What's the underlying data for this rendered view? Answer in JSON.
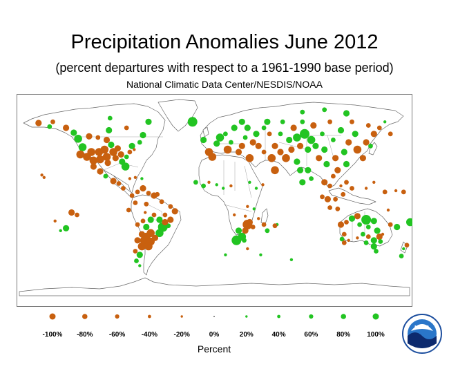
{
  "header": {
    "title": "Precipitation Anomalies June 2012",
    "subtitle": "(percent departures with respect to a 1961-1990 base period)",
    "source": "National Climatic Data Center/NESDIS/NOAA"
  },
  "legend": {
    "title": "Percent",
    "items": [
      {
        "label": "-100%",
        "value": -100
      },
      {
        "label": "-80%",
        "value": -80
      },
      {
        "label": "-60%",
        "value": -60
      },
      {
        "label": "-40%",
        "value": -40
      },
      {
        "label": "-20%",
        "value": -20
      },
      {
        "label": "0%",
        "value": 0
      },
      {
        "label": "20%",
        "value": 20
      },
      {
        "label": "40%",
        "value": 40
      },
      {
        "label": "60%",
        "value": 60
      },
      {
        "label": "80%",
        "value": 80
      },
      {
        "label": "100%",
        "value": 100
      }
    ]
  },
  "colors": {
    "dry": "#c8600f",
    "wet": "#22c422",
    "coast": "#666666",
    "border": "#888888",
    "frame": "#777777"
  },
  "logo": {
    "text": "NOAA",
    "icon": "noaa-logo-icon"
  },
  "stations": [
    {
      "lon": -160,
      "lat": 64,
      "v": -60
    },
    {
      "lon": -150,
      "lat": 61,
      "v": 40
    },
    {
      "lon": -147,
      "lat": 65,
      "v": -40
    },
    {
      "lon": -135,
      "lat": 60,
      "v": -60
    },
    {
      "lon": -128,
      "lat": 56,
      "v": 60
    },
    {
      "lon": -124,
      "lat": 51,
      "v": 80
    },
    {
      "lon": -114,
      "lat": 53,
      "v": -60
    },
    {
      "lon": -106,
      "lat": 52,
      "v": -40
    },
    {
      "lon": -98,
      "lat": 50,
      "v": -60
    },
    {
      "lon": -96,
      "lat": 58,
      "v": 60
    },
    {
      "lon": -95,
      "lat": 68,
      "v": 40
    },
    {
      "lon": -80,
      "lat": 60,
      "v": -40
    },
    {
      "lon": -75,
      "lat": 45,
      "v": 60
    },
    {
      "lon": -68,
      "lat": 48,
      "v": 40
    },
    {
      "lon": -65,
      "lat": 54,
      "v": 60
    },
    {
      "lon": -60,
      "lat": 65,
      "v": 60
    },
    {
      "lon": -120,
      "lat": 44,
      "v": 80
    },
    {
      "lon": -122,
      "lat": 38,
      "v": -80
    },
    {
      "lon": -116,
      "lat": 36,
      "v": -80
    },
    {
      "lon": -112,
      "lat": 40,
      "v": -80
    },
    {
      "lon": -110,
      "lat": 33,
      "v": -80
    },
    {
      "lon": -105,
      "lat": 40,
      "v": -80
    },
    {
      "lon": -104,
      "lat": 34,
      "v": -80
    },
    {
      "lon": -100,
      "lat": 42,
      "v": -80
    },
    {
      "lon": -98,
      "lat": 36,
      "v": -80
    },
    {
      "lon": -97,
      "lat": 31,
      "v": -60
    },
    {
      "lon": -94,
      "lat": 46,
      "v": 60
    },
    {
      "lon": -92,
      "lat": 40,
      "v": -80
    },
    {
      "lon": -90,
      "lat": 35,
      "v": -60
    },
    {
      "lon": -88,
      "lat": 43,
      "v": -60
    },
    {
      "lon": -85,
      "lat": 38,
      "v": -60
    },
    {
      "lon": -84,
      "lat": 32,
      "v": 60
    },
    {
      "lon": -81,
      "lat": 28,
      "v": 80
    },
    {
      "lon": -80,
      "lat": 36,
      "v": 40
    },
    {
      "lon": -77,
      "lat": 40,
      "v": -40
    },
    {
      "lon": -73,
      "lat": 42,
      "v": -20
    },
    {
      "lon": -110,
      "lat": 28,
      "v": -60
    },
    {
      "lon": -104,
      "lat": 24,
      "v": -60
    },
    {
      "lon": -99,
      "lat": 20,
      "v": 40
    },
    {
      "lon": -92,
      "lat": 16,
      "v": -60
    },
    {
      "lon": -87,
      "lat": 14,
      "v": -40
    },
    {
      "lon": -83,
      "lat": 10,
      "v": -40
    },
    {
      "lon": -77,
      "lat": 18,
      "v": -20
    },
    {
      "lon": -72,
      "lat": 19,
      "v": -20
    },
    {
      "lon": -66,
      "lat": 18,
      "v": 20
    },
    {
      "lon": -157,
      "lat": 21,
      "v": -20
    },
    {
      "lon": -155,
      "lat": 19,
      "v": -20
    },
    {
      "lon": -145,
      "lat": -17,
      "v": -20
    },
    {
      "lon": -130,
      "lat": -10,
      "v": -60
    },
    {
      "lon": -125,
      "lat": -12,
      "v": -40
    },
    {
      "lon": -135,
      "lat": -23,
      "v": 60
    },
    {
      "lon": -140,
      "lat": -25,
      "v": 20
    },
    {
      "lon": -75,
      "lat": 4,
      "v": -40
    },
    {
      "lon": -70,
      "lat": 7,
      "v": -40
    },
    {
      "lon": -65,
      "lat": 10,
      "v": -60
    },
    {
      "lon": -60,
      "lat": 6,
      "v": -40
    },
    {
      "lon": -55,
      "lat": 4,
      "v": -60
    },
    {
      "lon": -52,
      "lat": 5,
      "v": -40
    },
    {
      "lon": -72,
      "lat": -2,
      "v": -40
    },
    {
      "lon": -62,
      "lat": -3,
      "v": -40
    },
    {
      "lon": -78,
      "lat": -8,
      "v": -40
    },
    {
      "lon": -48,
      "lat": -1,
      "v": -40
    },
    {
      "lon": -40,
      "lat": -5,
      "v": -40
    },
    {
      "lon": -36,
      "lat": -9,
      "v": -60
    },
    {
      "lon": -45,
      "lat": -12,
      "v": -40
    },
    {
      "lon": -55,
      "lat": -12,
      "v": -40
    },
    {
      "lon": -63,
      "lat": -10,
      "v": -20
    },
    {
      "lon": -58,
      "lat": -16,
      "v": 60
    },
    {
      "lon": -50,
      "lat": -16,
      "v": 60
    },
    {
      "lon": -47,
      "lat": -22,
      "v": 100
    },
    {
      "lon": -50,
      "lat": -27,
      "v": 80
    },
    {
      "lon": -42,
      "lat": -21,
      "v": 40
    },
    {
      "lon": -40,
      "lat": -16,
      "v": -60
    },
    {
      "lon": -45,
      "lat": -18,
      "v": -60
    },
    {
      "lon": -65,
      "lat": -17,
      "v": -40
    },
    {
      "lon": -62,
      "lat": -22,
      "v": 60
    },
    {
      "lon": -58,
      "lat": -27,
      "v": -80
    },
    {
      "lon": -62,
      "lat": -30,
      "v": -80
    },
    {
      "lon": -66,
      "lat": -28,
      "v": -60
    },
    {
      "lon": -70,
      "lat": -20,
      "v": -40
    },
    {
      "lon": -70,
      "lat": -33,
      "v": -60
    },
    {
      "lon": -64,
      "lat": -33,
      "v": -80
    },
    {
      "lon": -58,
      "lat": -34,
      "v": -80
    },
    {
      "lon": -60,
      "lat": -38,
      "v": -80
    },
    {
      "lon": -66,
      "lat": -38,
      "v": -80
    },
    {
      "lon": -68,
      "lat": -45,
      "v": 60
    },
    {
      "lon": -72,
      "lat": -42,
      "v": -40
    },
    {
      "lon": -71,
      "lat": -50,
      "v": 40
    },
    {
      "lon": -68,
      "lat": -54,
      "v": 20
    },
    {
      "lon": -54,
      "lat": -31,
      "v": -60
    },
    {
      "lon": -20,
      "lat": 65,
      "v": 100
    },
    {
      "lon": -10,
      "lat": 50,
      "v": 60
    },
    {
      "lon": -5,
      "lat": 40,
      "v": -80
    },
    {
      "lon": -2,
      "lat": 36,
      "v": -80
    },
    {
      "lon": 2,
      "lat": 47,
      "v": 60
    },
    {
      "lon": 5,
      "lat": 52,
      "v": 80
    },
    {
      "lon": 10,
      "lat": 55,
      "v": 40
    },
    {
      "lon": 12,
      "lat": 42,
      "v": -80
    },
    {
      "lon": 15,
      "lat": 48,
      "v": 40
    },
    {
      "lon": 18,
      "lat": 60,
      "v": 60
    },
    {
      "lon": 22,
      "lat": 40,
      "v": -60
    },
    {
      "lon": 25,
      "lat": 45,
      "v": -60
    },
    {
      "lon": 25,
      "lat": 65,
      "v": 60
    },
    {
      "lon": 28,
      "lat": 52,
      "v": 40
    },
    {
      "lon": 30,
      "lat": 60,
      "v": 60
    },
    {
      "lon": 32,
      "lat": 35,
      "v": -80
    },
    {
      "lon": 35,
      "lat": 48,
      "v": -60
    },
    {
      "lon": 38,
      "lat": 55,
      "v": 60
    },
    {
      "lon": 40,
      "lat": 45,
      "v": -60
    },
    {
      "lon": 45,
      "lat": 40,
      "v": -40
    },
    {
      "lon": 45,
      "lat": 60,
      "v": 40
    },
    {
      "lon": 48,
      "lat": 65,
      "v": 60
    },
    {
      "lon": 50,
      "lat": 55,
      "v": -40
    },
    {
      "lon": 52,
      "lat": 35,
      "v": -80
    },
    {
      "lon": 55,
      "lat": 45,
      "v": -60
    },
    {
      "lon": 55,
      "lat": 25,
      "v": -80
    },
    {
      "lon": 60,
      "lat": 40,
      "v": -60
    },
    {
      "lon": 60,
      "lat": 55,
      "v": 40
    },
    {
      "lon": 62,
      "lat": 65,
      "v": 40
    },
    {
      "lon": 65,
      "lat": 35,
      "v": -80
    },
    {
      "lon": 68,
      "lat": 50,
      "v": 60
    },
    {
      "lon": 70,
      "lat": 42,
      "v": -60
    },
    {
      "lon": 72,
      "lat": 60,
      "v": -60
    },
    {
      "lon": 75,
      "lat": 52,
      "v": 80
    },
    {
      "lon": 75,
      "lat": 32,
      "v": 60
    },
    {
      "lon": 78,
      "lat": 25,
      "v": 60
    },
    {
      "lon": 78,
      "lat": 45,
      "v": -60
    },
    {
      "lon": 80,
      "lat": 65,
      "v": 40
    },
    {
      "lon": 82,
      "lat": 55,
      "v": 100
    },
    {
      "lon": 85,
      "lat": 42,
      "v": 60
    },
    {
      "lon": 85,
      "lat": 25,
      "v": 60
    },
    {
      "lon": 88,
      "lat": 50,
      "v": 80
    },
    {
      "lon": 90,
      "lat": 62,
      "v": -60
    },
    {
      "lon": 92,
      "lat": 45,
      "v": 60
    },
    {
      "lon": 95,
      "lat": 35,
      "v": -60
    },
    {
      "lon": 98,
      "lat": 55,
      "v": 40
    },
    {
      "lon": 100,
      "lat": 42,
      "v": 60
    },
    {
      "lon": 102,
      "lat": 30,
      "v": 60
    },
    {
      "lon": 105,
      "lat": 65,
      "v": -40
    },
    {
      "lon": 108,
      "lat": 50,
      "v": 40
    },
    {
      "lon": 110,
      "lat": 35,
      "v": -60
    },
    {
      "lon": 112,
      "lat": 25,
      "v": -60
    },
    {
      "lon": 115,
      "lat": 58,
      "v": 60
    },
    {
      "lon": 118,
      "lat": 40,
      "v": 60
    },
    {
      "lon": 120,
      "lat": 30,
      "v": 60
    },
    {
      "lon": 122,
      "lat": 48,
      "v": -60
    },
    {
      "lon": 125,
      "lat": 65,
      "v": -40
    },
    {
      "lon": 128,
      "lat": 55,
      "v": 60
    },
    {
      "lon": 130,
      "lat": 42,
      "v": -80
    },
    {
      "lon": 135,
      "lat": 35,
      "v": -60
    },
    {
      "lon": 138,
      "lat": 48,
      "v": -60
    },
    {
      "lon": 140,
      "lat": 62,
      "v": -40
    },
    {
      "lon": 142,
      "lat": 45,
      "v": 40
    },
    {
      "lon": 145,
      "lat": 55,
      "v": -60
    },
    {
      "lon": 150,
      "lat": 60,
      "v": -40
    },
    {
      "lon": 155,
      "lat": 65,
      "v": 20
    },
    {
      "lon": 160,
      "lat": 55,
      "v": -40
    },
    {
      "lon": 120,
      "lat": 72,
      "v": 60
    },
    {
      "lon": 80,
      "lat": 73,
      "v": 40
    },
    {
      "lon": 100,
      "lat": 75,
      "v": 40
    },
    {
      "lon": 100,
      "lat": 15,
      "v": -60
    },
    {
      "lon": 105,
      "lat": 12,
      "v": -40
    },
    {
      "lon": 108,
      "lat": 20,
      "v": -40
    },
    {
      "lon": 115,
      "lat": 12,
      "v": -20
    },
    {
      "lon": 120,
      "lat": 15,
      "v": -40
    },
    {
      "lon": 125,
      "lat": 10,
      "v": -40
    },
    {
      "lon": 138,
      "lat": 10,
      "v": -20
    },
    {
      "lon": 145,
      "lat": 15,
      "v": -20
    },
    {
      "lon": 80,
      "lat": 15,
      "v": 60
    },
    {
      "lon": 88,
      "lat": 18,
      "v": 40
    },
    {
      "lon": -17,
      "lat": 15,
      "v": 40
    },
    {
      "lon": -10,
      "lat": 12,
      "v": 40
    },
    {
      "lon": -5,
      "lat": 15,
      "v": -20
    },
    {
      "lon": 2,
      "lat": 13,
      "v": 20
    },
    {
      "lon": 8,
      "lat": 10,
      "v": 20
    },
    {
      "lon": 15,
      "lat": 12,
      "v": -20
    },
    {
      "lon": 32,
      "lat": 15,
      "v": 20
    },
    {
      "lon": 38,
      "lat": 10,
      "v": 20
    },
    {
      "lon": 44,
      "lat": 13,
      "v": -20
    },
    {
      "lon": 30,
      "lat": -5,
      "v": -20
    },
    {
      "lon": 36,
      "lat": -7,
      "v": 20
    },
    {
      "lon": 40,
      "lat": -15,
      "v": -20
    },
    {
      "lon": 45,
      "lat": -20,
      "v": -40
    },
    {
      "lon": 18,
      "lat": -12,
      "v": -20
    },
    {
      "lon": 28,
      "lat": -13,
      "v": -20
    },
    {
      "lon": 22,
      "lat": -25,
      "v": 60
    },
    {
      "lon": 25,
      "lat": -30,
      "v": 80
    },
    {
      "lon": 28,
      "lat": -25,
      "v": -60
    },
    {
      "lon": 30,
      "lat": -20,
      "v": -100
    },
    {
      "lon": 32,
      "lat": -18,
      "v": -60
    },
    {
      "lon": 35,
      "lat": -22,
      "v": -40
    },
    {
      "lon": 20,
      "lat": -33,
      "v": 100
    },
    {
      "lon": 27,
      "lat": -33,
      "v": 40
    },
    {
      "lon": 48,
      "lat": -25,
      "v": 40
    },
    {
      "lon": 57,
      "lat": -20,
      "v": 20
    },
    {
      "lon": 55,
      "lat": -21,
      "v": -40
    },
    {
      "lon": 30,
      "lat": -40,
      "v": -20
    },
    {
      "lon": 10,
      "lat": -45,
      "v": 20
    },
    {
      "lon": 42,
      "lat": -45,
      "v": 20
    },
    {
      "lon": 70,
      "lat": -49,
      "v": 20
    },
    {
      "lon": 115,
      "lat": -20,
      "v": -60
    },
    {
      "lon": 120,
      "lat": -18,
      "v": -40
    },
    {
      "lon": 125,
      "lat": -15,
      "v": 60
    },
    {
      "lon": 130,
      "lat": -13,
      "v": -60
    },
    {
      "lon": 132,
      "lat": -20,
      "v": 40
    },
    {
      "lon": 138,
      "lat": -16,
      "v": 100
    },
    {
      "lon": 140,
      "lat": -22,
      "v": 40
    },
    {
      "lon": 145,
      "lat": -17,
      "v": 60
    },
    {
      "lon": 148,
      "lat": -25,
      "v": 60
    },
    {
      "lon": 150,
      "lat": -30,
      "v": -60
    },
    {
      "lon": 145,
      "lat": -33,
      "v": 60
    },
    {
      "lon": 140,
      "lat": -30,
      "v": -40
    },
    {
      "lon": 135,
      "lat": -28,
      "v": 40
    },
    {
      "lon": 130,
      "lat": -31,
      "v": -20
    },
    {
      "lon": 118,
      "lat": -28,
      "v": -40
    },
    {
      "lon": 116,
      "lat": -32,
      "v": 40
    },
    {
      "lon": 118,
      "lat": -35,
      "v": -40
    },
    {
      "lon": 122,
      "lat": -33,
      "v": -20
    },
    {
      "lon": 138,
      "lat": -35,
      "v": 40
    },
    {
      "lon": 145,
      "lat": -38,
      "v": 60
    },
    {
      "lon": 147,
      "lat": -42,
      "v": 40
    },
    {
      "lon": 151,
      "lat": -34,
      "v": 40
    },
    {
      "lon": 153,
      "lat": -28,
      "v": -20
    },
    {
      "lon": 160,
      "lat": -20,
      "v": -40
    },
    {
      "lon": 166,
      "lat": -22,
      "v": 60
    },
    {
      "lon": 172,
      "lat": -40,
      "v": 20
    },
    {
      "lon": 175,
      "lat": -37,
      "v": -40
    },
    {
      "lon": 178,
      "lat": -18,
      "v": 80
    },
    {
      "lon": 170,
      "lat": -46,
      "v": 40
    },
    {
      "lon": 165,
      "lat": 8,
      "v": -20
    },
    {
      "lon": 172,
      "lat": 7,
      "v": -40
    },
    {
      "lon": 155,
      "lat": 7,
      "v": -40
    },
    {
      "lon": 158,
      "lat": -8,
      "v": -20
    },
    {
      "lon": 105,
      "lat": -6,
      "v": -40
    },
    {
      "lon": 112,
      "lat": -7,
      "v": -40
    },
    {
      "lon": 98,
      "lat": 3,
      "v": -40
    },
    {
      "lon": 103,
      "lat": 1,
      "v": -60
    },
    {
      "lon": 110,
      "lat": 1,
      "v": -40
    },
    {
      "lon": 117,
      "lat": 5,
      "v": -40
    }
  ]
}
